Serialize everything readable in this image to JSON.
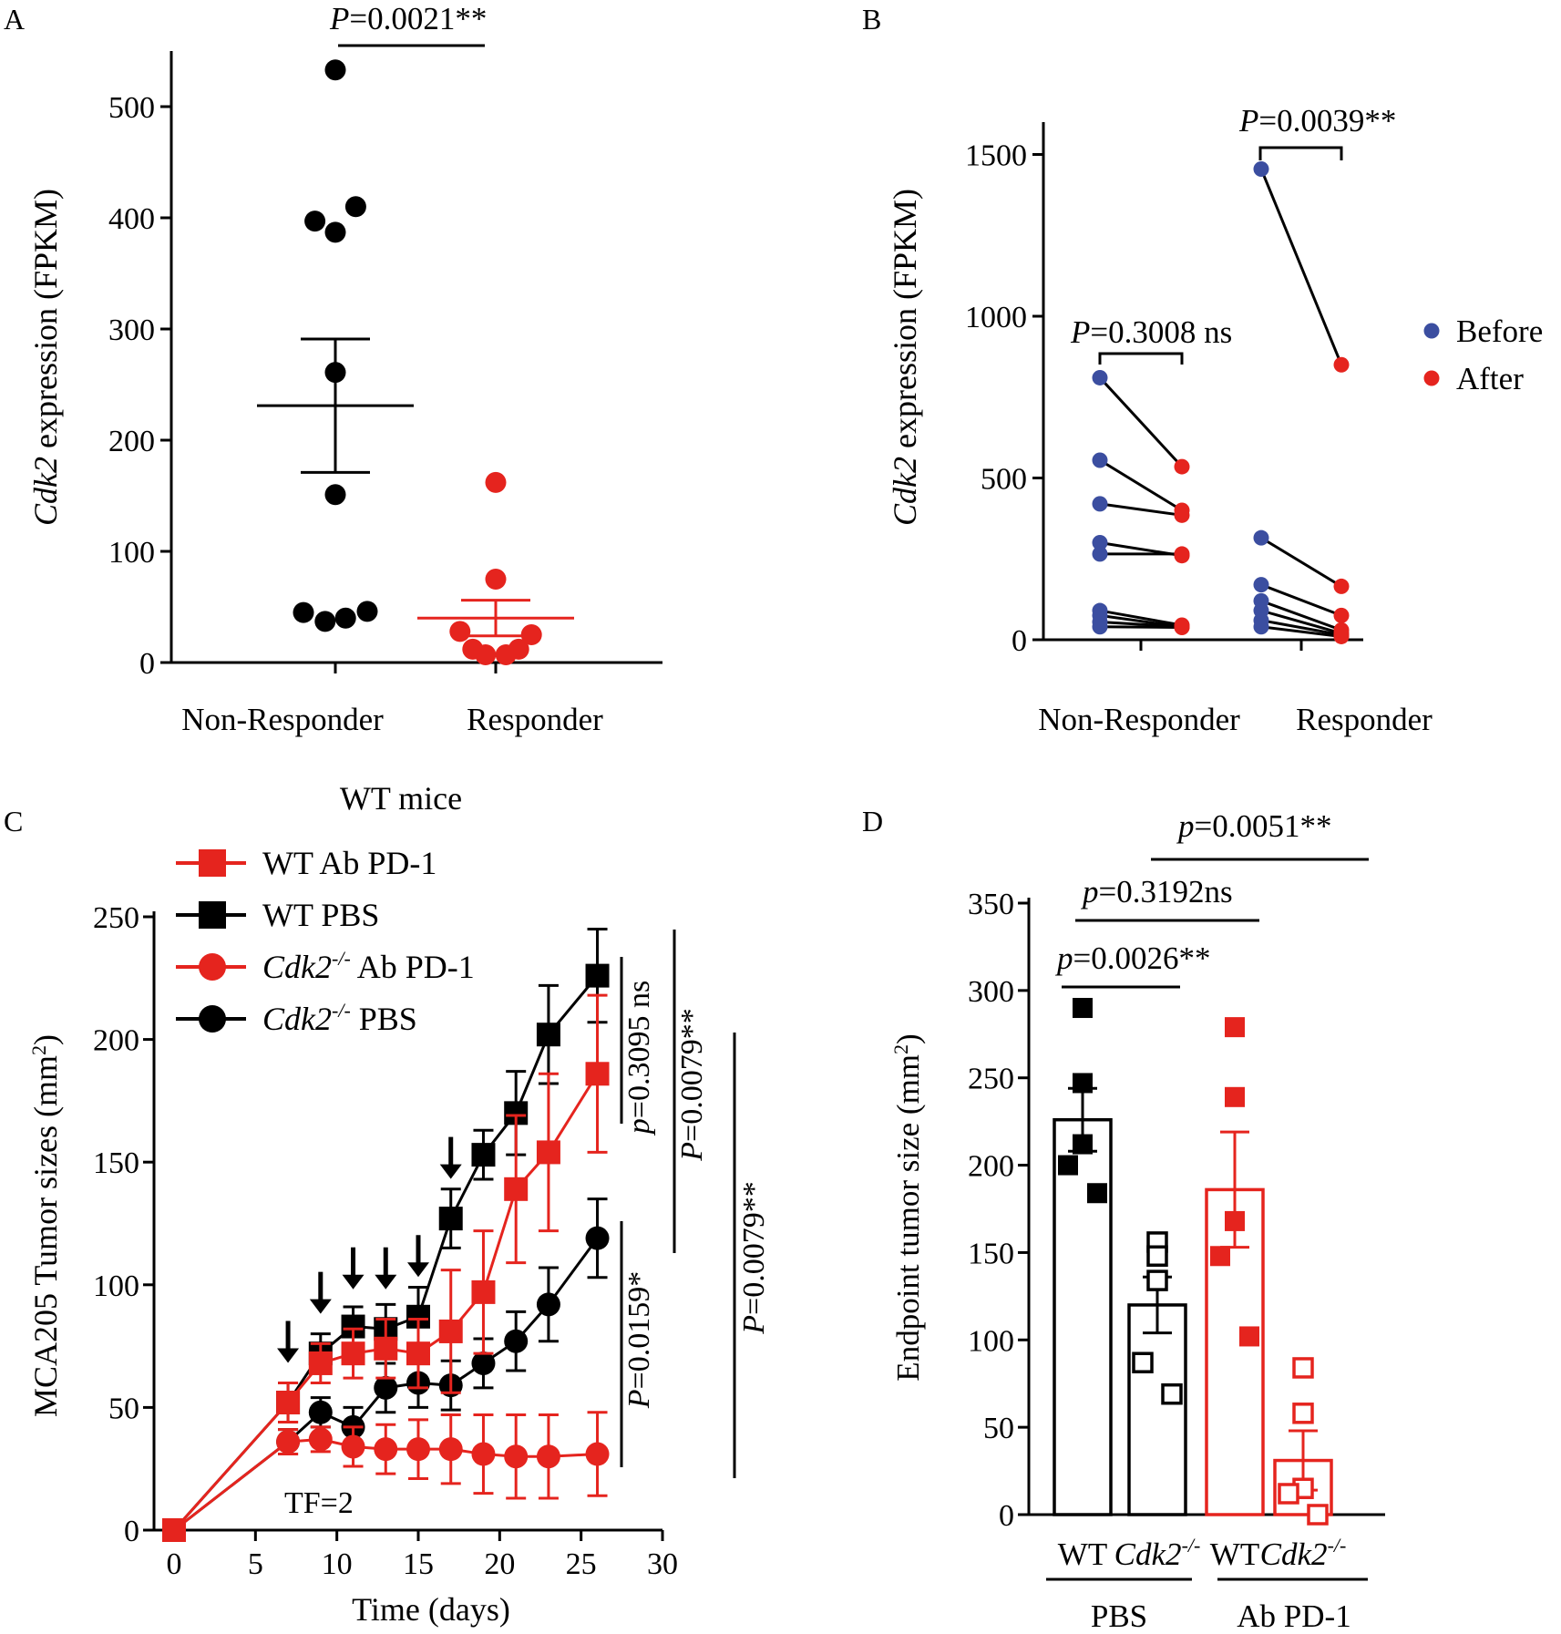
{
  "figure": {
    "colors": {
      "black": "#000000",
      "red": "#e5241e",
      "blue": "#3b4ea0"
    }
  },
  "chart_data": [
    {
      "panel": "A",
      "type": "scatter",
      "ylabel_italic": "Cdk2",
      "ylabel_rest": " expression (FPKM)",
      "ylim": [
        0,
        550
      ],
      "yticks": [
        0,
        100,
        200,
        300,
        400,
        500
      ],
      "categories": [
        "Non-Responder",
        "Responder"
      ],
      "groups": [
        {
          "name": "Non-Responder",
          "color": "#000000",
          "points": [
            {
              "dx": 0,
              "y": 533
            },
            {
              "dx": 16,
              "y": 410
            },
            {
              "dx": -16,
              "y": 397
            },
            {
              "dx": 0,
              "y": 387
            },
            {
              "dx": 0,
              "y": 261
            },
            {
              "dx": 0,
              "y": 151
            },
            {
              "dx": -25,
              "y": 45
            },
            {
              "dx": -8,
              "y": 37
            },
            {
              "dx": 8,
              "y": 40
            },
            {
              "dx": 25,
              "y": 46
            }
          ],
          "mean": 231,
          "sem_low": 171,
          "sem_high": 291
        },
        {
          "name": "Responder",
          "color": "#e5241e",
          "points": [
            {
              "dx": 0,
              "y": 162
            },
            {
              "dx": 0,
              "y": 75
            },
            {
              "dx": -28,
              "y": 28
            },
            {
              "dx": 28,
              "y": 25
            },
            {
              "dx": -18,
              "y": 12
            },
            {
              "dx": 18,
              "y": 12
            },
            {
              "dx": -8,
              "y": 7
            },
            {
              "dx": 8,
              "y": 7
            }
          ],
          "mean": 40,
          "sem_low": 24,
          "sem_high": 56
        }
      ],
      "annotation": {
        "p_label": "P",
        "p_value": "=0.0021**"
      }
    },
    {
      "panel": "B",
      "type": "scatter",
      "ylabel_italic": "Cdk2",
      "ylabel_rest": " expression (FPKM)",
      "ylim": [
        0,
        1600
      ],
      "yticks": [
        0,
        500,
        1000,
        1500
      ],
      "categories": [
        "Non-Responder",
        "Responder"
      ],
      "legend": [
        {
          "label": "Before",
          "color": "#3b4ea0"
        },
        {
          "label": "After",
          "color": "#e5241e"
        }
      ],
      "series": [
        {
          "name": "Before",
          "color": "#3b4ea0"
        },
        {
          "name": "After",
          "color": "#e5241e"
        }
      ],
      "pairs": [
        {
          "group": 0,
          "before": 810,
          "after": 535
        },
        {
          "group": 0,
          "before": 555,
          "after": 400
        },
        {
          "group": 0,
          "before": 420,
          "after": 385
        },
        {
          "group": 0,
          "before": 300,
          "after": 260
        },
        {
          "group": 0,
          "before": 265,
          "after": 265
        },
        {
          "group": 0,
          "before": 90,
          "after": 45
        },
        {
          "group": 0,
          "before": 75,
          "after": 40
        },
        {
          "group": 0,
          "before": 55,
          "after": 40
        },
        {
          "group": 0,
          "before": 40,
          "after": 38
        },
        {
          "group": 1,
          "before": 1455,
          "after": 850
        },
        {
          "group": 1,
          "before": 315,
          "after": 165
        },
        {
          "group": 1,
          "before": 170,
          "after": 75
        },
        {
          "group": 1,
          "before": 120,
          "after": 30
        },
        {
          "group": 1,
          "before": 90,
          "after": 20
        },
        {
          "group": 1,
          "before": 60,
          "after": 15
        },
        {
          "group": 1,
          "before": 40,
          "after": 10
        }
      ],
      "annotations": [
        {
          "p_label": "P",
          "p_value": "=0.3008 ns"
        },
        {
          "p_label": "P",
          "p_value": "=0.0039**"
        }
      ]
    },
    {
      "panel": "C",
      "type": "line",
      "title": "WT mice",
      "ylabel": "MCA205  Tumor sizes (mm",
      "ylabel_sup": "2",
      "ylabel_close": ")",
      "xlabel": "Time (days)",
      "xlim": [
        0,
        30
      ],
      "ylim": [
        0,
        250
      ],
      "xticks": [
        0,
        5,
        10,
        15,
        20,
        25,
        30
      ],
      "yticks": [
        0,
        50,
        100,
        150,
        200,
        250
      ],
      "x": [
        0,
        7,
        9,
        11,
        13,
        15,
        17,
        19,
        21,
        23,
        26
      ],
      "series": [
        {
          "name": "WT Ab PD-1",
          "italic_prefix": "",
          "label_sup": "",
          "label_rest": "WT Ab PD-1",
          "color": "#e5241e",
          "marker": "square",
          "values": [
            0,
            52,
            68,
            72,
            74,
            72,
            81,
            97,
            139,
            154,
            186
          ],
          "errors": [
            0,
            8,
            8,
            10,
            12,
            14,
            25,
            25,
            30,
            32,
            32
          ]
        },
        {
          "name": "WT PBS",
          "italic_prefix": "",
          "label_sup": "",
          "label_rest": "WT PBS",
          "color": "#000000",
          "marker": "square",
          "values": [
            0,
            52,
            72,
            83,
            82,
            87,
            127,
            153,
            170,
            202,
            226
          ],
          "errors": [
            0,
            8,
            8,
            8,
            10,
            12,
            12,
            10,
            17,
            20,
            19
          ]
        },
        {
          "name": "Cdk2-/- Ab PD-1",
          "italic_prefix": "Cdk2",
          "label_sup": "-/-",
          "label_rest": " Ab PD-1",
          "color": "#e5241e",
          "marker": "circle",
          "values": [
            0,
            36,
            37,
            34,
            33,
            33,
            33,
            31,
            30,
            30,
            31
          ],
          "errors": [
            0,
            5,
            5,
            8,
            10,
            12,
            14,
            16,
            17,
            17,
            17
          ]
        },
        {
          "name": "Cdk2-/- PBS",
          "italic_prefix": "Cdk2",
          "label_sup": "-/-",
          "label_rest": " PBS",
          "color": "#000000",
          "marker": "circle",
          "values": [
            0,
            36,
            48,
            42,
            58,
            60,
            59,
            68,
            77,
            92,
            119
          ],
          "errors": [
            0,
            5,
            6,
            8,
            10,
            10,
            10,
            10,
            12,
            15,
            16
          ]
        }
      ],
      "arrows_at_days": [
        7,
        9,
        11,
        13,
        15,
        17
      ],
      "annotations": [
        {
          "text": "TF=2"
        },
        {
          "p_label": "p",
          "p_value": "=0.3095 ns"
        },
        {
          "p_label": "P",
          "p_value": "=0.0079**"
        },
        {
          "p_label": "P",
          "p_value": "=0.0079**"
        },
        {
          "p_label": "P",
          "p_value": "=0.0159*"
        }
      ]
    },
    {
      "panel": "D",
      "type": "bar",
      "ylabel": "Endpoint tumor size (mm",
      "ylabel_sup": "2",
      "ylabel_close": ")",
      "ylim": [
        0,
        350
      ],
      "yticks": [
        0,
        50,
        100,
        150,
        200,
        250,
        300,
        350
      ],
      "bars": [
        {
          "label": "WT",
          "italic": false,
          "sup": "",
          "color": "#000000",
          "filled_points": true,
          "mean": 226,
          "sem": 18,
          "points": [
            290,
            247,
            212,
            200,
            184
          ]
        },
        {
          "label": "Cdk2",
          "italic": true,
          "sup": "-/-",
          "color": "#000000",
          "filled_points": false,
          "mean": 120,
          "sem": 16,
          "points": [
            156,
            148,
            134,
            87,
            69
          ]
        },
        {
          "label": "WT",
          "italic": false,
          "sup": "",
          "color": "#e5241e",
          "filled_points": true,
          "mean": 186,
          "sem": 33,
          "points": [
            279,
            239,
            168,
            148,
            102
          ]
        },
        {
          "label": "Cdk2",
          "italic": true,
          "sup": "-/-",
          "color": "#e5241e",
          "filled_points": false,
          "mean": 31,
          "sem": 17,
          "points": [
            84,
            58,
            15,
            12,
            0
          ]
        }
      ],
      "group_labels": [
        "PBS",
        "Ab PD-1"
      ],
      "annotations": [
        {
          "p_label": "p",
          "p_value": "=0.0051**"
        },
        {
          "p_label": "p",
          "p_value": "=0.3192ns"
        },
        {
          "p_label": "p",
          "p_value": "=0.0026**"
        }
      ]
    }
  ],
  "panels": {
    "a": "A",
    "b": "B",
    "c": "C",
    "d": "D"
  }
}
